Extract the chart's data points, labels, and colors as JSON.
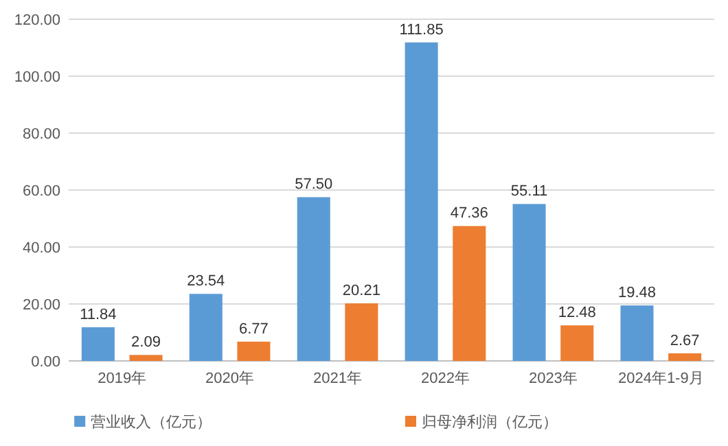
{
  "chart_data": {
    "type": "bar",
    "categories": [
      "2019年",
      "2020年",
      "2021年",
      "2022年",
      "2023年",
      "2024年1-9月"
    ],
    "series": [
      {
        "name": "营业收入（亿元）",
        "color": "#5b9bd5",
        "values": [
          11.84,
          23.54,
          57.5,
          111.85,
          55.11,
          19.48
        ],
        "value_labels": [
          "11.84",
          "23.54",
          "57.50",
          "111.85",
          "55.11",
          "19.48"
        ]
      },
      {
        "name": "归母净利润（亿元）",
        "color": "#ed7d31",
        "values": [
          2.09,
          6.77,
          20.21,
          47.36,
          12.48,
          2.67
        ],
        "value_labels": [
          "2.09",
          "6.77",
          "20.21",
          "47.36",
          "12.48",
          "2.67"
        ]
      }
    ],
    "ylim": [
      0,
      120
    ],
    "yticks": [
      {
        "value": 0,
        "label": "0.00"
      },
      {
        "value": 20,
        "label": "20.00"
      },
      {
        "value": 40,
        "label": "40.00"
      },
      {
        "value": 60,
        "label": "60.00"
      },
      {
        "value": 80,
        "label": "80.00"
      },
      {
        "value": 100,
        "label": "100.00"
      },
      {
        "value": 120,
        "label": "120.00"
      }
    ],
    "grid": "y",
    "legend": "bottom"
  }
}
